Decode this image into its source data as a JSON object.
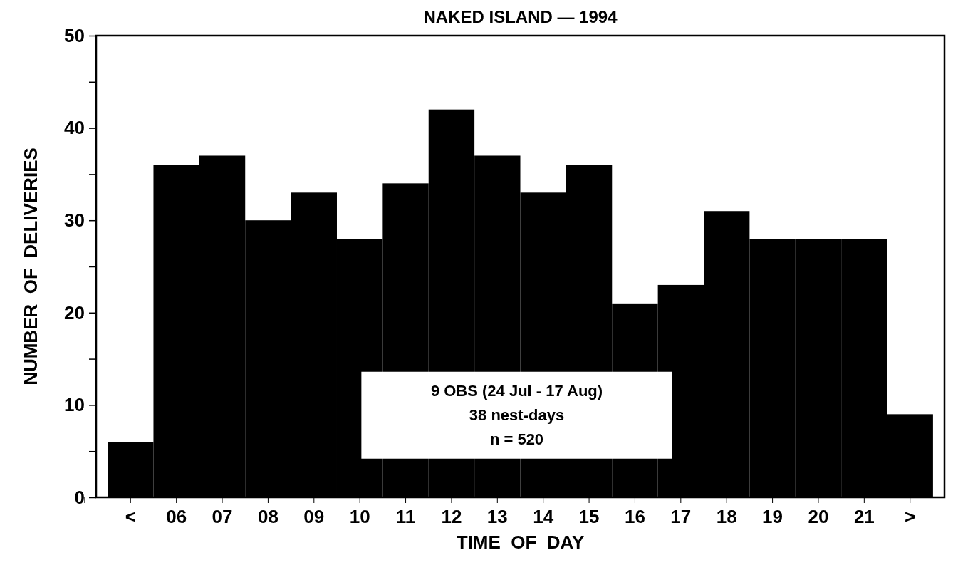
{
  "chart_data": {
    "type": "bar",
    "title": "NAKED ISLAND — 1994",
    "xlabel": "TIME  OF  DAY",
    "ylabel": "NUMBER  OF  DELIVERIES",
    "categories": [
      "<",
      "06",
      "07",
      "08",
      "09",
      "10",
      "11",
      "12",
      "13",
      "14",
      "15",
      "16",
      "17",
      "18",
      "19",
      "20",
      "21",
      ">"
    ],
    "values": [
      6,
      36,
      37,
      30,
      33,
      28,
      34,
      42,
      37,
      33,
      36,
      21,
      23,
      31,
      28,
      28,
      28,
      9
    ],
    "color": "#000000",
    "ylim": [
      0,
      50
    ],
    "yticks": [
      0,
      {
        "value": 5,
        "label": null
      },
      10,
      {
        "value": 15,
        "label": null
      },
      20,
      {
        "value": 25,
        "label": null
      },
      30,
      {
        "value": 35,
        "label": null
      },
      40,
      {
        "value": 45,
        "label": null
      },
      50
    ],
    "annotations": [
      "9 OBS (24 Jul - 17 Aug)",
      "38 nest-days",
      "n = 520"
    ],
    "grid": false
  }
}
